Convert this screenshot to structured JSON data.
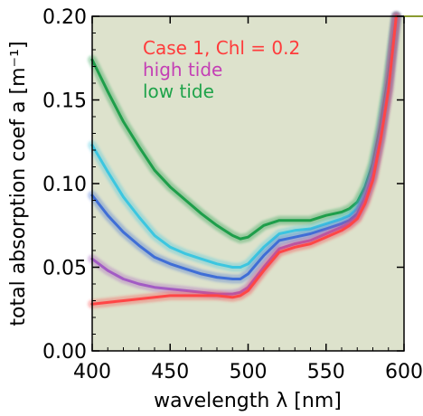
{
  "chart_data": {
    "type": "line",
    "xlabel": "wavelength λ [nm]",
    "ylabel": "total absorption coef a [m⁻¹]",
    "xlim": [
      400,
      600
    ],
    "ylim": [
      0.0,
      0.2
    ],
    "x_ticks": [
      "400",
      "450",
      "500",
      "550",
      "600"
    ],
    "y_ticks": [
      "0.00",
      "0.05",
      "0.10",
      "0.15",
      "0.20"
    ],
    "background": "#dde2cc",
    "grid": false,
    "legend_position": "top-left",
    "legend": [
      {
        "text": "Case 1, Chl = 0.2",
        "color": "#ff3b3b"
      },
      {
        "text": "high tide",
        "color": "#c43fb5"
      },
      {
        "text": "low tide",
        "color": "#1fa34a"
      }
    ],
    "series": [
      {
        "color": "#1e9e4a",
        "x": [
          400,
          410,
          420,
          430,
          440,
          450,
          460,
          470,
          480,
          490,
          495,
          500,
          510,
          520,
          530,
          540,
          550,
          560,
          565,
          570,
          575,
          580,
          585,
          590,
          595
        ],
        "y": [
          0.174,
          0.155,
          0.137,
          0.122,
          0.108,
          0.098,
          0.09,
          0.082,
          0.075,
          0.069,
          0.067,
          0.068,
          0.075,
          0.078,
          0.078,
          0.078,
          0.081,
          0.083,
          0.085,
          0.089,
          0.098,
          0.112,
          0.135,
          0.165,
          0.2
        ]
      },
      {
        "color": "#3cc6e0",
        "x": [
          400,
          410,
          420,
          430,
          440,
          450,
          460,
          470,
          480,
          490,
          495,
          500,
          510,
          520,
          530,
          540,
          550,
          560,
          565,
          570,
          575,
          580,
          585,
          590,
          595
        ],
        "y": [
          0.123,
          0.107,
          0.092,
          0.08,
          0.069,
          0.062,
          0.058,
          0.055,
          0.052,
          0.05,
          0.05,
          0.052,
          0.062,
          0.07,
          0.072,
          0.073,
          0.076,
          0.079,
          0.081,
          0.085,
          0.094,
          0.108,
          0.13,
          0.16,
          0.2
        ]
      },
      {
        "color": "#3f6ed6",
        "x": [
          400,
          410,
          420,
          430,
          440,
          450,
          460,
          470,
          480,
          490,
          495,
          500,
          510,
          520,
          530,
          540,
          550,
          560,
          565,
          570,
          575,
          580,
          585,
          590,
          595
        ],
        "y": [
          0.093,
          0.081,
          0.071,
          0.063,
          0.056,
          0.052,
          0.049,
          0.046,
          0.044,
          0.043,
          0.043,
          0.046,
          0.057,
          0.066,
          0.068,
          0.07,
          0.073,
          0.076,
          0.078,
          0.082,
          0.091,
          0.105,
          0.128,
          0.158,
          0.2
        ]
      },
      {
        "color": "#a25bc4",
        "x": [
          400,
          410,
          420,
          430,
          440,
          450,
          460,
          470,
          480,
          490,
          495,
          500,
          510,
          520,
          530,
          540,
          550,
          560,
          565,
          570,
          575,
          580,
          585,
          590,
          595
        ],
        "y": [
          0.055,
          0.048,
          0.043,
          0.04,
          0.038,
          0.037,
          0.036,
          0.035,
          0.034,
          0.034,
          0.035,
          0.038,
          0.05,
          0.061,
          0.064,
          0.066,
          0.07,
          0.074,
          0.076,
          0.08,
          0.09,
          0.104,
          0.127,
          0.157,
          0.2
        ]
      },
      {
        "color": "#ff4646",
        "x": [
          400,
          410,
          420,
          430,
          440,
          450,
          460,
          470,
          480,
          490,
          495,
          500,
          510,
          520,
          530,
          540,
          550,
          560,
          565,
          570,
          575,
          580,
          585,
          590,
          595
        ],
        "y": [
          0.028,
          0.029,
          0.03,
          0.031,
          0.032,
          0.033,
          0.033,
          0.033,
          0.033,
          0.032,
          0.033,
          0.036,
          0.048,
          0.059,
          0.062,
          0.064,
          0.068,
          0.072,
          0.075,
          0.079,
          0.088,
          0.102,
          0.126,
          0.156,
          0.2
        ]
      }
    ]
  }
}
